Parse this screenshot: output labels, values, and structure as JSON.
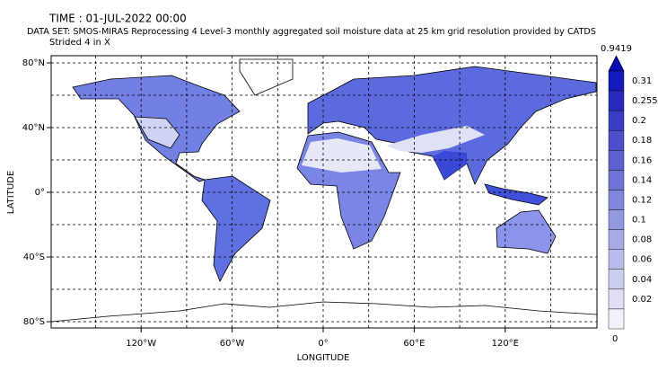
{
  "header": {
    "time": "TIME : 01-JUL-2022 00:00",
    "dataset": "DATA SET: SMOS-MIRAS Reprocessing 4 Level-3 monthly aggregated soil moisture data at 25 km grid resolution provided by CATDS",
    "note": "Strided 4 in X"
  },
  "map": {
    "x_label": "LONGITUDE",
    "y_label": "LATITUDE",
    "xticks": [
      "120°W",
      "60°W",
      "0°",
      "60°E",
      "120°E"
    ],
    "yticks": [
      "80°N",
      "40°N",
      "0°",
      "40°S",
      "80°S"
    ]
  },
  "colorbar": {
    "max_label": "0.9419",
    "labels": [
      "0.31",
      "0.255",
      "0.2",
      "0.18",
      "0.16",
      "0.14",
      "0.12",
      "0.1",
      "0.08",
      "0.06",
      "0.04",
      "0.02",
      "0"
    ]
  }
}
